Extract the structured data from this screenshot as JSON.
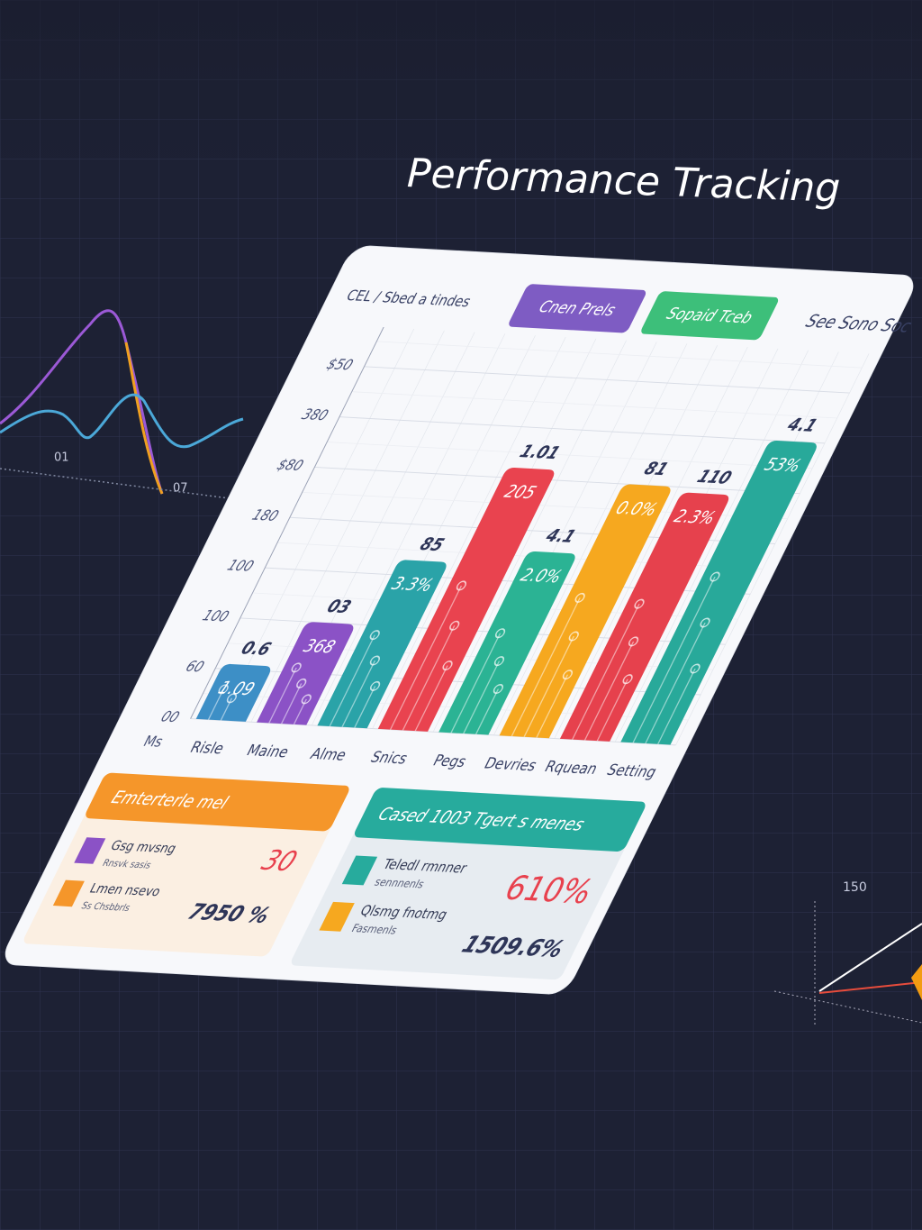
{
  "title": "Performance Tracking",
  "header": {
    "text": "CEL / Sbed a tindes",
    "right_text": "See Sono Soc"
  },
  "tabs": [
    "Cnen Prels",
    "Sopaid Tceb"
  ],
  "background_labels": [
    "01",
    "07",
    "150"
  ],
  "chart_data": {
    "type": "bar",
    "x_label": "Ms",
    "categories": [
      "Risle",
      "Maine",
      "Alme",
      "Snics",
      "Pegs",
      "Devries",
      "Rquean",
      "Setting"
    ],
    "values": [
      1.1,
      2.0,
      3.3,
      5.2,
      3.6,
      5.0,
      4.9,
      6.0
    ],
    "colors": [
      "#3d8fc6",
      "#8b52c6",
      "#2aa3a8",
      "#e9434f",
      "#2bb394",
      "#f6a81f",
      "#e6414d",
      "#28a99a"
    ],
    "top_labels": [
      "0.6",
      "03",
      "85",
      "1.01",
      "4.1",
      "81",
      "110",
      "4.1"
    ],
    "inner_labels": [
      "1.09",
      "368",
      "3.3%",
      "205",
      "2.0%",
      "0.0%",
      "2.3%",
      "53%"
    ],
    "ylim": [
      0,
      7.5
    ],
    "yticks": [
      {
        "value": 0,
        "label": "00"
      },
      {
        "value": 1,
        "label": "60"
      },
      {
        "value": 2,
        "label": "100"
      },
      {
        "value": 3,
        "label": "100"
      },
      {
        "value": 4,
        "label": "180"
      },
      {
        "value": 5,
        "label": "$80"
      },
      {
        "value": 6,
        "label": "380"
      },
      {
        "value": 7,
        "label": "$50"
      }
    ],
    "grid": true
  },
  "cards": [
    {
      "title": "Emterterle mel",
      "items": [
        [
          "Gsg mvsng",
          "Rnsvk sasis"
        ],
        [
          "Lmen nsevo",
          "Ss Chsbbrls"
        ]
      ],
      "values": [
        "30",
        "7950 %"
      ]
    },
    {
      "title": "Cased 1003 Tgert s menes",
      "items": [
        [
          "Teledl rmnner",
          "sennnenls"
        ],
        [
          "Qlsmg fnotmg",
          "Fasmenls"
        ]
      ],
      "values": [
        "610%",
        "1509.6%"
      ]
    }
  ]
}
